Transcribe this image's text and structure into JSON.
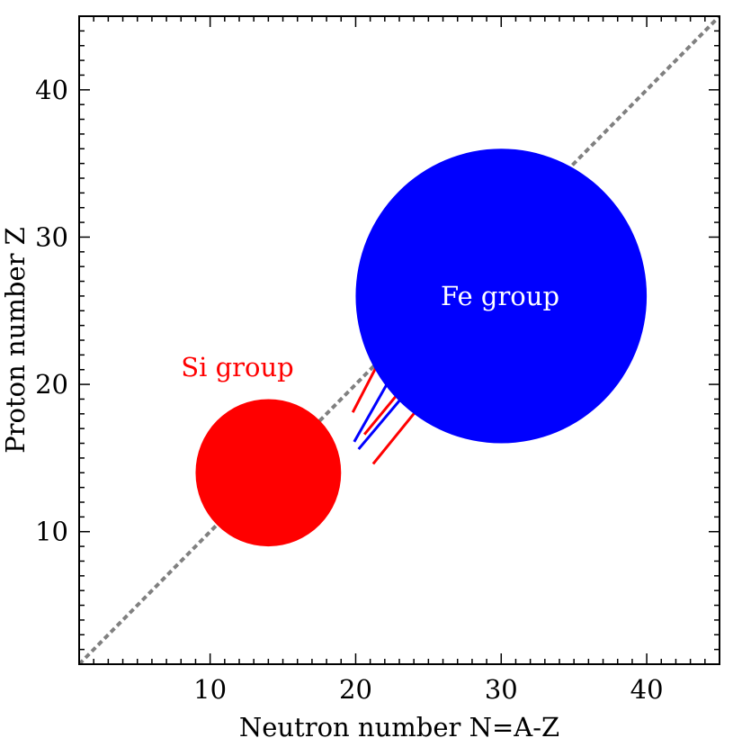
{
  "chart_data": {
    "type": "scatter",
    "xlabel": "Neutron number N=A-Z",
    "ylabel": "Proton number Z",
    "xlim": [
      1,
      45
    ],
    "ylim": [
      1,
      45
    ],
    "xticks": [
      10,
      20,
      30,
      40
    ],
    "yticks": [
      10,
      20,
      30,
      40
    ],
    "grid": false,
    "reference_line": {
      "style": "dashed",
      "color": "#808080",
      "x": [
        1,
        45
      ],
      "y": [
        1,
        45
      ]
    },
    "groups": [
      {
        "name": "Si group",
        "label": "Si group",
        "N": 14,
        "Z": 14,
        "radius": 5,
        "color": "#ff0000",
        "label_color": "#ff0000"
      },
      {
        "name": "Fe group",
        "label": "Fe group",
        "N": 30,
        "Z": 26,
        "radius": 10,
        "color": "#0000ff",
        "label_color": "#ffffff"
      }
    ],
    "links": [
      {
        "color": "#ff0000",
        "from": [
          19.8,
          18.1
        ],
        "to": [
          23.1,
          24.4
        ]
      },
      {
        "color": "#ff0000",
        "from": [
          20.6,
          16.6
        ],
        "to": [
          24.6,
          21.4
        ]
      },
      {
        "color": "#ff0000",
        "from": [
          21.2,
          14.6
        ],
        "to": [
          25.3,
          19.6
        ]
      },
      {
        "color": "#0000ff",
        "from": [
          19.9,
          16.1
        ],
        "to": [
          23.4,
          22.2
        ]
      },
      {
        "color": "#0000ff",
        "from": [
          20.2,
          15.6
        ],
        "to": [
          24.8,
          21.0
        ]
      }
    ]
  }
}
